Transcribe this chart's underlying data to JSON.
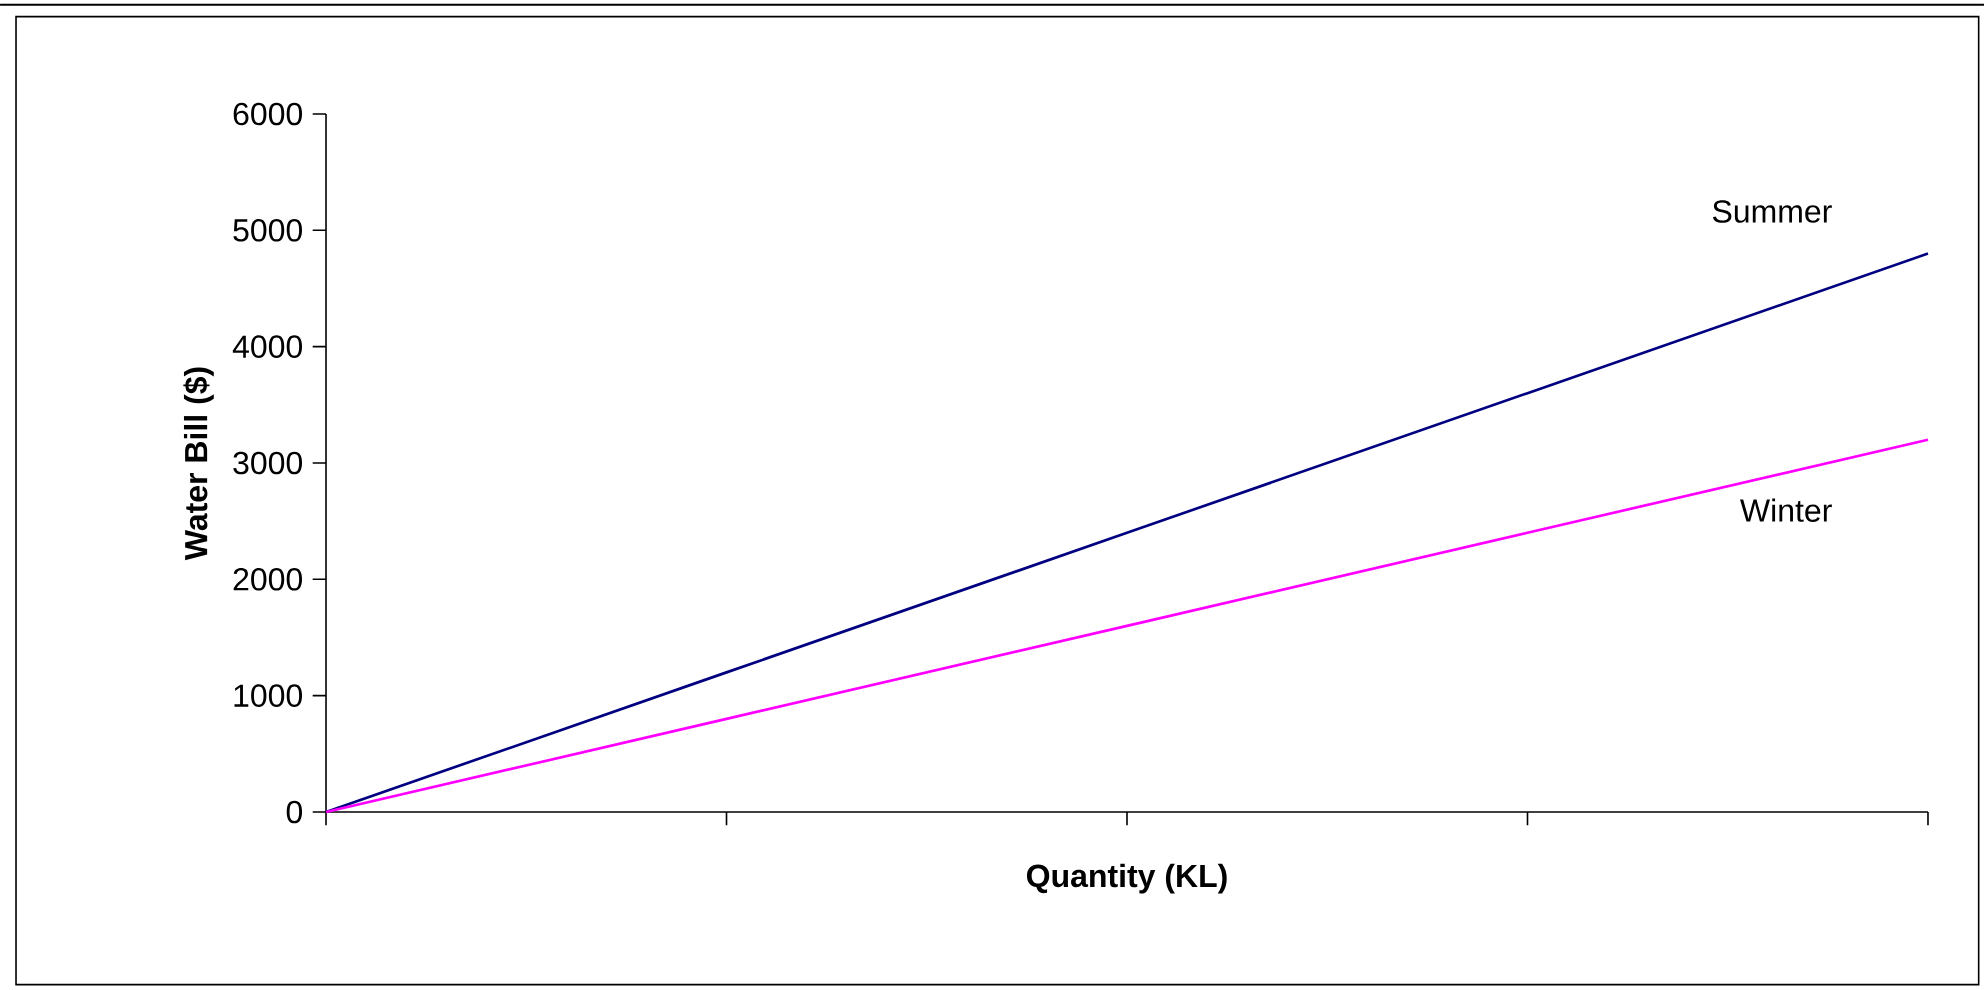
{
  "chart_data": {
    "type": "line",
    "xlabel": "Quantity (KL)",
    "ylabel": "Water Bill ($)",
    "categories": [
      null,
      null,
      null,
      null,
      null
    ],
    "series": [
      {
        "name": "Summer",
        "color": "#000080",
        "values": [
          0,
          1200,
          2400,
          3600,
          4800
        ]
      },
      {
        "name": "Winter",
        "color": "#ff00ff",
        "values": [
          0,
          800,
          1600,
          2400,
          3200
        ]
      }
    ],
    "ylim": [
      0,
      6000
    ],
    "yticks": [
      0,
      1000,
      2000,
      3000,
      4000,
      5000,
      6000
    ],
    "grid": false,
    "legend": false,
    "marker": "none",
    "line_style": "solid"
  }
}
